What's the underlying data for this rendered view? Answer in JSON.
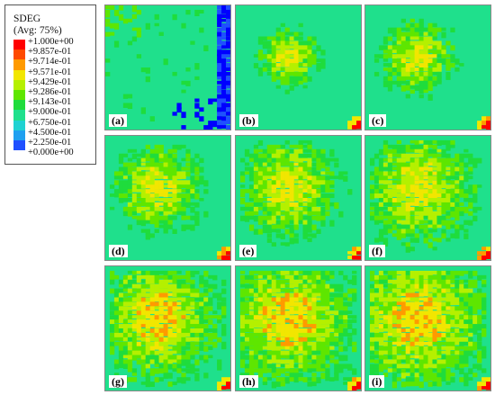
{
  "legend": {
    "title_line1": "SDEG",
    "title_line2": "(Avg: 75%)",
    "entries": [
      {
        "label": "+1.000e+00",
        "color": "#ff0000"
      },
      {
        "label": "+9.857e-01",
        "color": "#ff4a00"
      },
      {
        "label": "+9.714e-01",
        "color": "#ff9a00"
      },
      {
        "label": "+9.571e-01",
        "color": "#f2e600"
      },
      {
        "label": "+9.429e-01",
        "color": "#b5f000"
      },
      {
        "label": "+9.286e-01",
        "color": "#5ee600"
      },
      {
        "label": "+9.143e-01",
        "color": "#1fdc3c"
      },
      {
        "label": "+9.000e-01",
        "color": "#1fe08c"
      },
      {
        "label": "+6.750e-01",
        "color": "#1fd2d2"
      },
      {
        "label": "+4.500e-01",
        "color": "#1fa0f0"
      },
      {
        "label": "+2.250e-01",
        "color": "#1f50ff"
      },
      {
        "label": "+0.000e+00",
        "color": "#0000ff"
      }
    ]
  },
  "panels": [
    {
      "label": "(a)"
    },
    {
      "label": "(b)"
    },
    {
      "label": "(c)"
    },
    {
      "label": "(d)"
    },
    {
      "label": "(e)"
    },
    {
      "label": "(f)"
    },
    {
      "label": "(g)"
    },
    {
      "label": "(h)"
    },
    {
      "label": "(i)"
    }
  ]
}
